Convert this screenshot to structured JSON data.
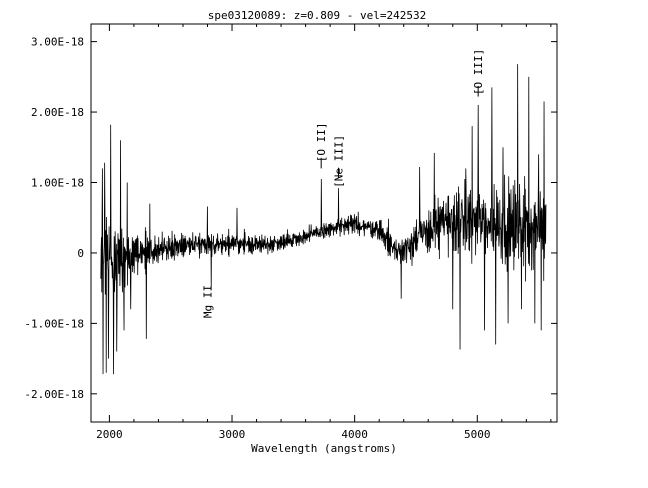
{
  "chart_data": {
    "type": "line",
    "title": "spe03120089: z=0.809 - vel=242532",
    "xlabel": "Wavelength (angstroms)",
    "ylabel": "",
    "xlim": [
      1850,
      5650
    ],
    "ylim": [
      -2.4e-18,
      3.25e-18
    ],
    "x_ticks": [
      {
        "value": 2000,
        "label": "2000"
      },
      {
        "value": 3000,
        "label": "3000"
      },
      {
        "value": 4000,
        "label": "4000"
      },
      {
        "value": 5000,
        "label": "5000"
      }
    ],
    "y_ticks": [
      {
        "value": -2e-18,
        "label": "-2.00E-18"
      },
      {
        "value": -1e-18,
        "label": "-1.00E-18"
      },
      {
        "value": 0,
        "label": "0"
      },
      {
        "value": 1e-18,
        "label": "1.00E-18"
      },
      {
        "value": 2e-18,
        "label": "2.00E-18"
      },
      {
        "value": 3e-18,
        "label": "3.00E-18"
      }
    ],
    "line_color": "#000000",
    "grid": false,
    "spectrum_trend": {
      "x": [
        1930,
        2000,
        2100,
        2300,
        2600,
        3000,
        3300,
        3600,
        3800,
        4000,
        4200,
        4350,
        4500,
        4700,
        4900,
        5100,
        5300,
        5560
      ],
      "y": [
        -2e-20,
        -5e-20,
        -8e-20,
        1e-20,
        1.2e-19,
        1.3e-19,
        1.2e-19,
        2.3e-19,
        3.4e-19,
        4.1e-19,
        3.3e-19,
        1e-20,
        2e-19,
        4.2e-19,
        4.5e-19,
        4.3e-19,
        3.8e-19,
        3.5e-19
      ]
    },
    "spectrum_amplitude": {
      "x": [
        1930,
        2000,
        2100,
        2200,
        2400,
        2800,
        3300,
        3800,
        4200,
        4400,
        4700,
        5000,
        5300,
        5560
      ],
      "y": [
        1.35e-18,
        1.2e-18,
        1.1e-18,
        6e-19,
        3.5e-19,
        2.5e-19,
        2.2e-19,
        2.2e-19,
        2.8e-19,
        4.2e-19,
        7e-19,
        9.5e-19,
        1.1e-18,
        1.1e-18
      ]
    },
    "spectrum_points": 1400,
    "spectrum_peaks": [
      {
        "x": 1942,
        "y": 1.2e-18
      },
      {
        "x": 1948,
        "y": -1.72e-18
      },
      {
        "x": 1962,
        "y": 1.28e-18
      },
      {
        "x": 1975,
        "y": -1.7e-18
      },
      {
        "x": 1992,
        "y": -1.5e-18
      },
      {
        "x": 2010,
        "y": 1.82e-18
      },
      {
        "x": 2035,
        "y": -1.72e-18
      },
      {
        "x": 2060,
        "y": -1.4e-18
      },
      {
        "x": 2090,
        "y": 1.6e-18
      },
      {
        "x": 2120,
        "y": -1.1e-18
      },
      {
        "x": 2145,
        "y": 1e-18
      },
      {
        "x": 2175,
        "y": -8e-19
      },
      {
        "x": 2300,
        "y": -1.22e-18
      },
      {
        "x": 2330,
        "y": 7e-19
      },
      {
        "x": 2800,
        "y": 6.6e-19
      },
      {
        "x": 2830,
        "y": -5.2e-19
      },
      {
        "x": 3040,
        "y": 6.4e-19
      },
      {
        "x": 3727,
        "y": 1.05e-18
      },
      {
        "x": 3868,
        "y": 9.2e-19
      },
      {
        "x": 4380,
        "y": -6.5e-19
      },
      {
        "x": 4530,
        "y": 1.22e-18
      },
      {
        "x": 4650,
        "y": 1.42e-18
      },
      {
        "x": 4800,
        "y": -8e-19
      },
      {
        "x": 4860,
        "y": -1.37e-18
      },
      {
        "x": 4905,
        "y": 1.2e-18
      },
      {
        "x": 4959,
        "y": 1.8e-18
      },
      {
        "x": 5007,
        "y": 2.1e-18
      },
      {
        "x": 5060,
        "y": -1.1e-18
      },
      {
        "x": 5120,
        "y": 2.35e-18
      },
      {
        "x": 5150,
        "y": -1.3e-18
      },
      {
        "x": 5210,
        "y": 1.5e-18
      },
      {
        "x": 5250,
        "y": -1e-18
      },
      {
        "x": 5330,
        "y": 2.68e-18
      },
      {
        "x": 5360,
        "y": -8e-19
      },
      {
        "x": 5420,
        "y": 2.5e-18
      },
      {
        "x": 5470,
        "y": -1e-18
      },
      {
        "x": 5500,
        "y": 1.4e-18
      },
      {
        "x": 5520,
        "y": -1.1e-18
      },
      {
        "x": 5545,
        "y": 2.15e-18
      }
    ],
    "annotations": [
      {
        "text": "Mg II",
        "x": 2800,
        "y": -6.9e-19
      },
      {
        "text": "[O II]",
        "x": 3727,
        "y": 1.57e-18
      },
      {
        "text": "[Ne III]",
        "x": 3868,
        "y": 1.3e-18
      },
      {
        "text": "[O III]",
        "x": 5007,
        "y": 2.57e-18
      }
    ],
    "line_markers": [
      {
        "x": 3727,
        "y_from": 1.2e-18,
        "y_to": 1.35e-18
      },
      {
        "x": 3868,
        "y_from": 1.06e-18,
        "y_to": 1.21e-18
      },
      {
        "x": 5007,
        "y_from": 2.22e-18,
        "y_to": 2.37e-18
      }
    ]
  }
}
